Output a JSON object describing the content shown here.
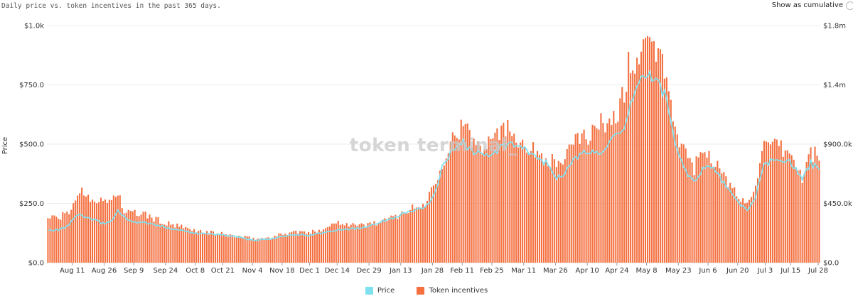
{
  "header": {
    "subtitle": "Daily price vs. token incentives in the past 365 days.",
    "toggle_label": "Show as cumulative"
  },
  "watermark": "token terminal_",
  "chart_data": {
    "type": "bar",
    "title": "",
    "subtitle": "Daily price vs. token incentives in the past 365 days.",
    "ylabel": "Price",
    "y_left": {
      "ylim": [
        0,
        1000
      ],
      "ticks": [
        "$0.0",
        "$250.0",
        "$500.0",
        "$750.0",
        "$1.0k"
      ]
    },
    "y_right": {
      "ylim": [
        0,
        1800000
      ],
      "ticks": [
        "$0.0",
        "$450.0k",
        "$900.0k",
        "$1.4m",
        "$1.8m"
      ]
    },
    "x_ticks": [
      "Aug 11",
      "Aug 26",
      "Sep 9",
      "Sep 24",
      "Oct 8",
      "Oct 21",
      "Nov 4",
      "Nov 18",
      "Dec 1",
      "Dec 14",
      "Dec 29",
      "Jan 13",
      "Jan 28",
      "Feb 11",
      "Feb 25",
      "Mar 11",
      "Mar 26",
      "Apr 10",
      "Apr 24",
      "May 8",
      "May 23",
      "Jun 6",
      "Jun 20",
      "Jul 3",
      "Jul 15",
      "Jul 28"
    ],
    "x_tick_days": [
      12,
      27,
      41,
      56,
      70,
      83,
      97,
      111,
      124,
      137,
      152,
      167,
      182,
      196,
      210,
      225,
      240,
      255,
      269,
      283,
      298,
      312,
      326,
      339,
      351,
      364
    ],
    "grid": true,
    "legend_position": "bottom",
    "n_days": 365,
    "series": [
      {
        "name": "Price",
        "axis": "left",
        "type": "line",
        "color": "#7fe0f0",
        "keypoints": [
          [
            0,
            135
          ],
          [
            6,
            140
          ],
          [
            10,
            160
          ],
          [
            14,
            205
          ],
          [
            20,
            185
          ],
          [
            26,
            165
          ],
          [
            30,
            175
          ],
          [
            33,
            220
          ],
          [
            35,
            205
          ],
          [
            38,
            175
          ],
          [
            45,
            170
          ],
          [
            55,
            150
          ],
          [
            70,
            125
          ],
          [
            85,
            115
          ],
          [
            97,
            95
          ],
          [
            105,
            100
          ],
          [
            115,
            120
          ],
          [
            124,
            115
          ],
          [
            137,
            140
          ],
          [
            147,
            145
          ],
          [
            160,
            180
          ],
          [
            170,
            215
          ],
          [
            178,
            230
          ],
          [
            182,
            280
          ],
          [
            186,
            400
          ],
          [
            192,
            490
          ],
          [
            196,
            510
          ],
          [
            200,
            470
          ],
          [
            205,
            460
          ],
          [
            210,
            450
          ],
          [
            214,
            490
          ],
          [
            218,
            500
          ],
          [
            222,
            490
          ],
          [
            228,
            460
          ],
          [
            235,
            420
          ],
          [
            240,
            360
          ],
          [
            244,
            380
          ],
          [
            248,
            430
          ],
          [
            252,
            460
          ],
          [
            256,
            470
          ],
          [
            260,
            460
          ],
          [
            264,
            500
          ],
          [
            268,
            530
          ],
          [
            272,
            550
          ],
          [
            276,
            700
          ],
          [
            280,
            780
          ],
          [
            284,
            790
          ],
          [
            288,
            760
          ],
          [
            292,
            690
          ],
          [
            296,
            500
          ],
          [
            300,
            400
          ],
          [
            305,
            340
          ],
          [
            310,
            410
          ],
          [
            315,
            390
          ],
          [
            320,
            320
          ],
          [
            325,
            260
          ],
          [
            330,
            220
          ],
          [
            334,
            280
          ],
          [
            338,
            410
          ],
          [
            344,
            440
          ],
          [
            350,
            430
          ],
          [
            356,
            350
          ],
          [
            360,
            420
          ],
          [
            364,
            390
          ]
        ]
      },
      {
        "name": "Token incentives",
        "axis": "right",
        "type": "bar",
        "color": "#f47040",
        "keypoints": [
          [
            0,
            345000
          ],
          [
            5,
            340000
          ],
          [
            10,
            380000
          ],
          [
            15,
            550000
          ],
          [
            20,
            500000
          ],
          [
            25,
            460000
          ],
          [
            30,
            480000
          ],
          [
            33,
            540000
          ],
          [
            36,
            380000
          ],
          [
            45,
            370000
          ],
          [
            55,
            300000
          ],
          [
            70,
            240000
          ],
          [
            85,
            210000
          ],
          [
            97,
            180000
          ],
          [
            105,
            190000
          ],
          [
            115,
            235000
          ],
          [
            124,
            225000
          ],
          [
            133,
            280000
          ],
          [
            137,
            310000
          ],
          [
            147,
            280000
          ],
          [
            160,
            320000
          ],
          [
            170,
            400000
          ],
          [
            178,
            440000
          ],
          [
            182,
            600000
          ],
          [
            186,
            760000
          ],
          [
            192,
            980000
          ],
          [
            196,
            1040000
          ],
          [
            200,
            930000
          ],
          [
            205,
            880000
          ],
          [
            210,
            1000000
          ],
          [
            214,
            1010000
          ],
          [
            218,
            1020000
          ],
          [
            222,
            950000
          ],
          [
            228,
            860000
          ],
          [
            235,
            800000
          ],
          [
            240,
            750000
          ],
          [
            244,
            790000
          ],
          [
            248,
            890000
          ],
          [
            252,
            980000
          ],
          [
            256,
            960000
          ],
          [
            260,
            1050000
          ],
          [
            264,
            1080000
          ],
          [
            268,
            1100000
          ],
          [
            272,
            1300000
          ],
          [
            276,
            1460000
          ],
          [
            280,
            1600000
          ],
          [
            284,
            1620000
          ],
          [
            288,
            1600000
          ],
          [
            292,
            1400000
          ],
          [
            296,
            960000
          ],
          [
            300,
            880000
          ],
          [
            305,
            720000
          ],
          [
            310,
            870000
          ],
          [
            315,
            760000
          ],
          [
            320,
            620000
          ],
          [
            325,
            520000
          ],
          [
            330,
            440000
          ],
          [
            334,
            620000
          ],
          [
            338,
            860000
          ],
          [
            344,
            880000
          ],
          [
            350,
            830000
          ],
          [
            356,
            640000
          ],
          [
            360,
            840000
          ],
          [
            364,
            800000
          ]
        ]
      }
    ]
  }
}
